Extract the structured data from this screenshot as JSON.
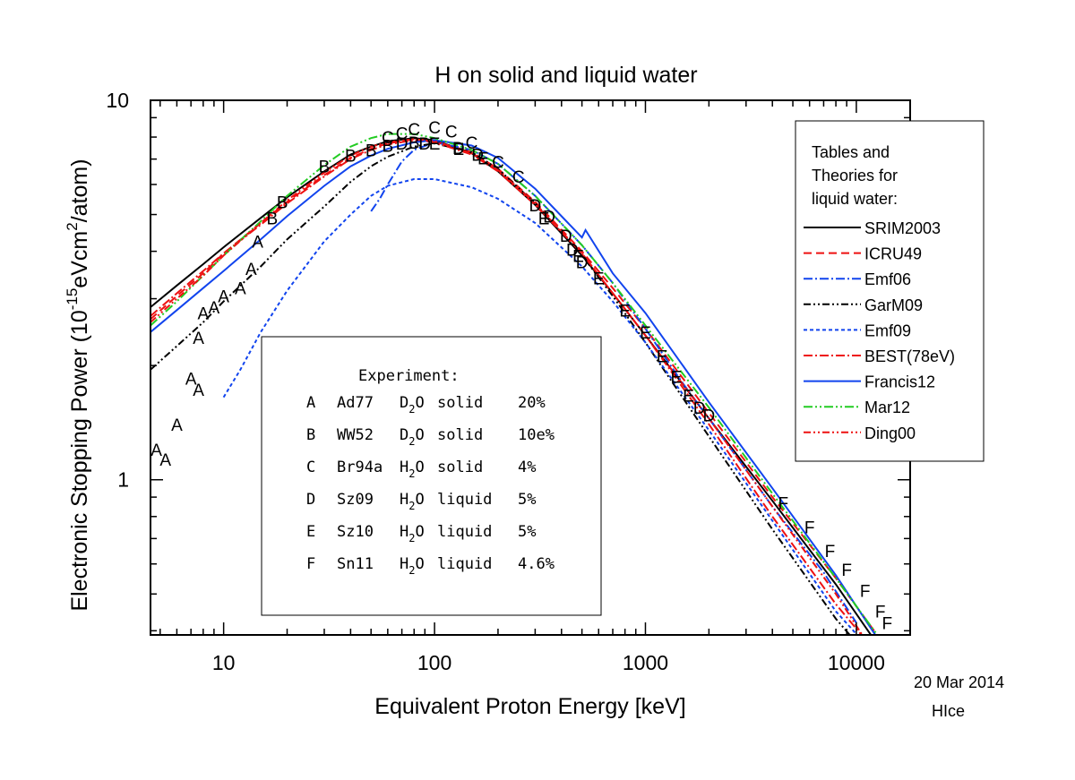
{
  "chart_data": {
    "type": "line",
    "title": "H on solid and liquid water",
    "xlabel": "Equivalent Proton Energy [keV]",
    "ylabel": "Electronic Stopping Power (10",
    "ylabel_exp1": "-15",
    "ylabel_mid": "eVcm",
    "ylabel_exp2": "2",
    "ylabel_end": "/atom)",
    "xscale": "log",
    "yscale": "log",
    "xlim": [
      4.5,
      18000
    ],
    "ylim": [
      0.39,
      10
    ],
    "xticks": [
      {
        "v": 10,
        "label": "10"
      },
      {
        "v": 100,
        "label": "100"
      },
      {
        "v": 1000,
        "label": "1000"
      },
      {
        "v": 10000,
        "label": "10000"
      }
    ],
    "yticks": [
      {
        "v": 1,
        "label": "1"
      },
      {
        "v": 10,
        "label": "10"
      }
    ],
    "date": "20 Mar 2014",
    "code": "HIce",
    "legend": {
      "title_lines": [
        "Tables and",
        "Theories for",
        "liquid water:"
      ],
      "placement": "right"
    },
    "series": [
      {
        "name": "SRIM2003",
        "color": "#000000",
        "dash": "solid",
        "points": [
          [
            4.5,
            2.85
          ],
          [
            6,
            3.25
          ],
          [
            8,
            3.7
          ],
          [
            10,
            4.1
          ],
          [
            15,
            4.9
          ],
          [
            20,
            5.55
          ],
          [
            30,
            6.5
          ],
          [
            40,
            7.2
          ],
          [
            50,
            7.55
          ],
          [
            60,
            7.8
          ],
          [
            80,
            7.95
          ],
          [
            100,
            7.85
          ],
          [
            150,
            7.25
          ],
          [
            200,
            6.5
          ],
          [
            300,
            5.3
          ],
          [
            500,
            3.9
          ],
          [
            700,
            3.1
          ],
          [
            1000,
            2.4
          ],
          [
            2000,
            1.45
          ],
          [
            4000,
            0.88
          ],
          [
            8000,
            0.53
          ],
          [
            15000,
            0.32
          ]
        ]
      },
      {
        "name": "ICRU49",
        "color": "#ee1111",
        "dash": "9,5",
        "points": [
          [
            4.5,
            2.65
          ],
          [
            6,
            3.05
          ],
          [
            8,
            3.5
          ],
          [
            10,
            3.95
          ],
          [
            15,
            4.75
          ],
          [
            20,
            5.4
          ],
          [
            30,
            6.35
          ],
          [
            40,
            7.05
          ],
          [
            50,
            7.45
          ],
          [
            60,
            7.7
          ],
          [
            80,
            7.9
          ],
          [
            100,
            7.8
          ],
          [
            150,
            7.3
          ],
          [
            200,
            6.6
          ],
          [
            300,
            5.4
          ],
          [
            500,
            4.0
          ],
          [
            700,
            3.2
          ],
          [
            1000,
            2.5
          ],
          [
            2000,
            1.5
          ],
          [
            4000,
            0.9
          ],
          [
            8000,
            0.55
          ],
          [
            15000,
            0.34
          ]
        ]
      },
      {
        "name": "Emf06",
        "color": "#1144ee",
        "dash": "10,3,2,3",
        "points": [
          [
            50,
            5.1
          ],
          [
            55,
            5.5
          ],
          [
            60,
            6.0
          ],
          [
            70,
            6.9
          ],
          [
            80,
            7.4
          ],
          [
            100,
            7.75
          ],
          [
            150,
            7.4
          ],
          [
            200,
            6.8
          ],
          [
            300,
            5.6
          ],
          [
            500,
            4.15
          ],
          [
            700,
            3.3
          ],
          [
            1000,
            2.5
          ],
          [
            1500,
            1.8
          ],
          [
            2000,
            1.45
          ],
          [
            4000,
            0.85
          ],
          [
            7000,
            0.57
          ],
          [
            10000,
            0.42
          ]
        ]
      },
      {
        "name": "GarM09",
        "color": "#000000",
        "dash": "8,3,2,3,2,3",
        "points": [
          [
            4.5,
            1.95
          ],
          [
            6,
            2.25
          ],
          [
            8,
            2.6
          ],
          [
            10,
            2.95
          ],
          [
            15,
            3.65
          ],
          [
            20,
            4.3
          ],
          [
            30,
            5.25
          ],
          [
            40,
            6.1
          ],
          [
            50,
            6.7
          ],
          [
            60,
            7.1
          ],
          [
            80,
            7.55
          ],
          [
            100,
            7.7
          ],
          [
            150,
            7.3
          ],
          [
            200,
            6.6
          ],
          [
            300,
            5.35
          ],
          [
            500,
            3.9
          ],
          [
            700,
            3.05
          ],
          [
            1000,
            2.3
          ],
          [
            2000,
            1.3
          ],
          [
            4000,
            0.74
          ],
          [
            8000,
            0.43
          ],
          [
            11000,
            0.35
          ]
        ]
      },
      {
        "name": "Emf09",
        "color": "#1144ee",
        "dash": "4,3",
        "points": [
          [
            10,
            1.65
          ],
          [
            12,
            1.95
          ],
          [
            15,
            2.45
          ],
          [
            20,
            3.15
          ],
          [
            30,
            4.25
          ],
          [
            40,
            5.0
          ],
          [
            50,
            5.6
          ],
          [
            60,
            5.95
          ],
          [
            80,
            6.2
          ],
          [
            100,
            6.2
          ],
          [
            150,
            5.9
          ],
          [
            200,
            5.5
          ],
          [
            300,
            4.75
          ],
          [
            500,
            3.65
          ],
          [
            700,
            2.95
          ],
          [
            1000,
            2.3
          ],
          [
            2000,
            1.35
          ],
          [
            4000,
            0.78
          ],
          [
            8000,
            0.45
          ],
          [
            11000,
            0.37
          ]
        ]
      },
      {
        "name": "BEST(78eV)",
        "color": "#ee1111",
        "dash": "10,3,2,3",
        "points": [
          [
            4.5,
            2.7
          ],
          [
            6,
            3.1
          ],
          [
            8,
            3.55
          ],
          [
            10,
            3.95
          ],
          [
            15,
            4.7
          ],
          [
            20,
            5.35
          ],
          [
            30,
            6.3
          ],
          [
            40,
            7.0
          ],
          [
            50,
            7.4
          ],
          [
            60,
            7.65
          ],
          [
            80,
            7.85
          ],
          [
            100,
            7.75
          ],
          [
            150,
            7.2
          ],
          [
            200,
            6.5
          ],
          [
            300,
            5.3
          ],
          [
            500,
            3.95
          ],
          [
            700,
            3.1
          ],
          [
            1000,
            2.4
          ],
          [
            2000,
            1.4
          ],
          [
            4000,
            0.8
          ],
          [
            8000,
            0.47
          ],
          [
            11000,
            0.38
          ]
        ]
      },
      {
        "name": "Francis12",
        "color": "#1144ee",
        "dash": "solid",
        "points": [
          [
            4.5,
            2.45
          ],
          [
            6,
            2.8
          ],
          [
            8,
            3.2
          ],
          [
            10,
            3.55
          ],
          [
            15,
            4.3
          ],
          [
            20,
            4.95
          ],
          [
            30,
            5.95
          ],
          [
            40,
            6.7
          ],
          [
            50,
            7.15
          ],
          [
            60,
            7.45
          ],
          [
            80,
            7.75
          ],
          [
            100,
            7.85
          ],
          [
            150,
            7.6
          ],
          [
            200,
            7.05
          ],
          [
            300,
            5.85
          ],
          [
            500,
            4.35
          ],
          [
            520,
            4.55
          ],
          [
            700,
            3.5
          ],
          [
            1000,
            2.75
          ],
          [
            2000,
            1.6
          ],
          [
            4000,
            0.95
          ],
          [
            8000,
            0.56
          ],
          [
            15000,
            0.33
          ]
        ]
      },
      {
        "name": "Mar12",
        "color": "#22cc22",
        "dash": "10,3,2,3,2,3",
        "points": [
          [
            4.5,
            2.55
          ],
          [
            6,
            2.95
          ],
          [
            8,
            3.45
          ],
          [
            10,
            3.9
          ],
          [
            15,
            4.8
          ],
          [
            20,
            5.6
          ],
          [
            30,
            6.75
          ],
          [
            40,
            7.55
          ],
          [
            50,
            7.95
          ],
          [
            60,
            8.15
          ],
          [
            80,
            8.15
          ],
          [
            100,
            7.95
          ],
          [
            150,
            7.4
          ],
          [
            200,
            6.8
          ],
          [
            300,
            5.6
          ],
          [
            500,
            4.15
          ],
          [
            700,
            3.3
          ],
          [
            1000,
            2.55
          ],
          [
            2000,
            1.55
          ],
          [
            4000,
            0.92
          ],
          [
            8000,
            0.55
          ],
          [
            17000,
            0.31
          ]
        ]
      },
      {
        "name": "Ding00",
        "color": "#ee1111",
        "dash": "8,3,2,3,2,3",
        "points": [
          [
            4.5,
            2.6
          ],
          [
            6,
            3.0
          ],
          [
            8,
            3.45
          ],
          [
            10,
            3.9
          ],
          [
            15,
            4.75
          ],
          [
            20,
            5.45
          ],
          [
            30,
            6.45
          ],
          [
            40,
            7.15
          ],
          [
            50,
            7.55
          ],
          [
            60,
            7.75
          ],
          [
            80,
            7.9
          ],
          [
            100,
            7.8
          ],
          [
            150,
            7.25
          ],
          [
            200,
            6.55
          ],
          [
            300,
            5.35
          ],
          [
            500,
            3.95
          ],
          [
            700,
            3.1
          ],
          [
            1000,
            2.4
          ],
          [
            2000,
            1.45
          ],
          [
            4000,
            0.85
          ],
          [
            8000,
            0.5
          ],
          [
            11000,
            0.38
          ]
        ]
      }
    ],
    "experiment_box": {
      "title": "Experiment:",
      "rows": [
        {
          "letter": "A",
          "ref": "Ad77",
          "mol": "D",
          "sub": "2",
          "o": "O",
          "phase": "solid",
          "err": "20%"
        },
        {
          "letter": "B",
          "ref": "WW52",
          "mol": "D",
          "sub": "2",
          "o": "O",
          "phase": "solid",
          "err": "10e%"
        },
        {
          "letter": "C",
          "ref": "Br94a",
          "mol": "H",
          "sub": "2",
          "o": "O",
          "phase": "solid",
          "err": "4%"
        },
        {
          "letter": "D",
          "ref": "Sz09",
          "mol": "H",
          "sub": "2",
          "o": "O",
          "phase": "liquid",
          "err": "5%"
        },
        {
          "letter": "E",
          "ref": "Sz10",
          "mol": "H",
          "sub": "2",
          "o": "O",
          "phase": "liquid",
          "err": "5%"
        },
        {
          "letter": "F",
          "ref": "Sn11",
          "mol": "H",
          "sub": "2",
          "o": "O",
          "phase": "liquid",
          "err": "4.6%"
        }
      ]
    },
    "markers": [
      {
        "label": "A",
        "points": [
          [
            4.8,
            1.2
          ],
          [
            5.3,
            1.13
          ],
          [
            6.0,
            1.4
          ],
          [
            7.0,
            1.85
          ],
          [
            7.6,
            1.73
          ],
          [
            7.6,
            2.37
          ],
          [
            8.0,
            2.75
          ],
          [
            9.0,
            2.85
          ],
          [
            10.0,
            3.05
          ],
          [
            12.0,
            3.2
          ],
          [
            13.5,
            3.6
          ],
          [
            14.5,
            4.25
          ]
        ]
      },
      {
        "label": "B",
        "points": [
          [
            17,
            4.9
          ],
          [
            19,
            5.4
          ],
          [
            30,
            6.7
          ],
          [
            40,
            7.15
          ],
          [
            50,
            7.4
          ],
          [
            60,
            7.6
          ],
          [
            80,
            7.75
          ]
        ]
      },
      {
        "label": "C",
        "points": [
          [
            60,
            8.0
          ],
          [
            70,
            8.2
          ],
          [
            80,
            8.4
          ],
          [
            100,
            8.5
          ],
          [
            120,
            8.3
          ],
          [
            150,
            7.75
          ],
          [
            200,
            6.9
          ],
          [
            250,
            6.3
          ]
        ]
      },
      {
        "label": "D",
        "points": [
          [
            70,
            7.7
          ],
          [
            90,
            7.7
          ],
          [
            130,
            7.5
          ],
          [
            160,
            7.2
          ],
          [
            300,
            5.3
          ],
          [
            350,
            4.95
          ],
          [
            420,
            4.4
          ],
          [
            450,
            4.05
          ],
          [
            500,
            3.75
          ],
          [
            1800,
            1.55
          ],
          [
            2000,
            1.48
          ]
        ]
      },
      {
        "label": "E",
        "points": [
          [
            100,
            7.7
          ],
          [
            130,
            7.45
          ],
          [
            170,
            7.05
          ],
          [
            330,
            4.9
          ],
          [
            480,
            3.9
          ],
          [
            600,
            3.4
          ],
          [
            800,
            2.8
          ],
          [
            1000,
            2.45
          ],
          [
            1200,
            2.12
          ],
          [
            1400,
            1.87
          ],
          [
            1600,
            1.67
          ]
        ]
      },
      {
        "label": "F",
        "points": [
          [
            4500,
            0.87
          ],
          [
            6000,
            0.75
          ],
          [
            7500,
            0.65
          ],
          [
            9000,
            0.58
          ],
          [
            11000,
            0.51
          ],
          [
            13000,
            0.45
          ],
          [
            14000,
            0.42
          ]
        ]
      }
    ]
  }
}
